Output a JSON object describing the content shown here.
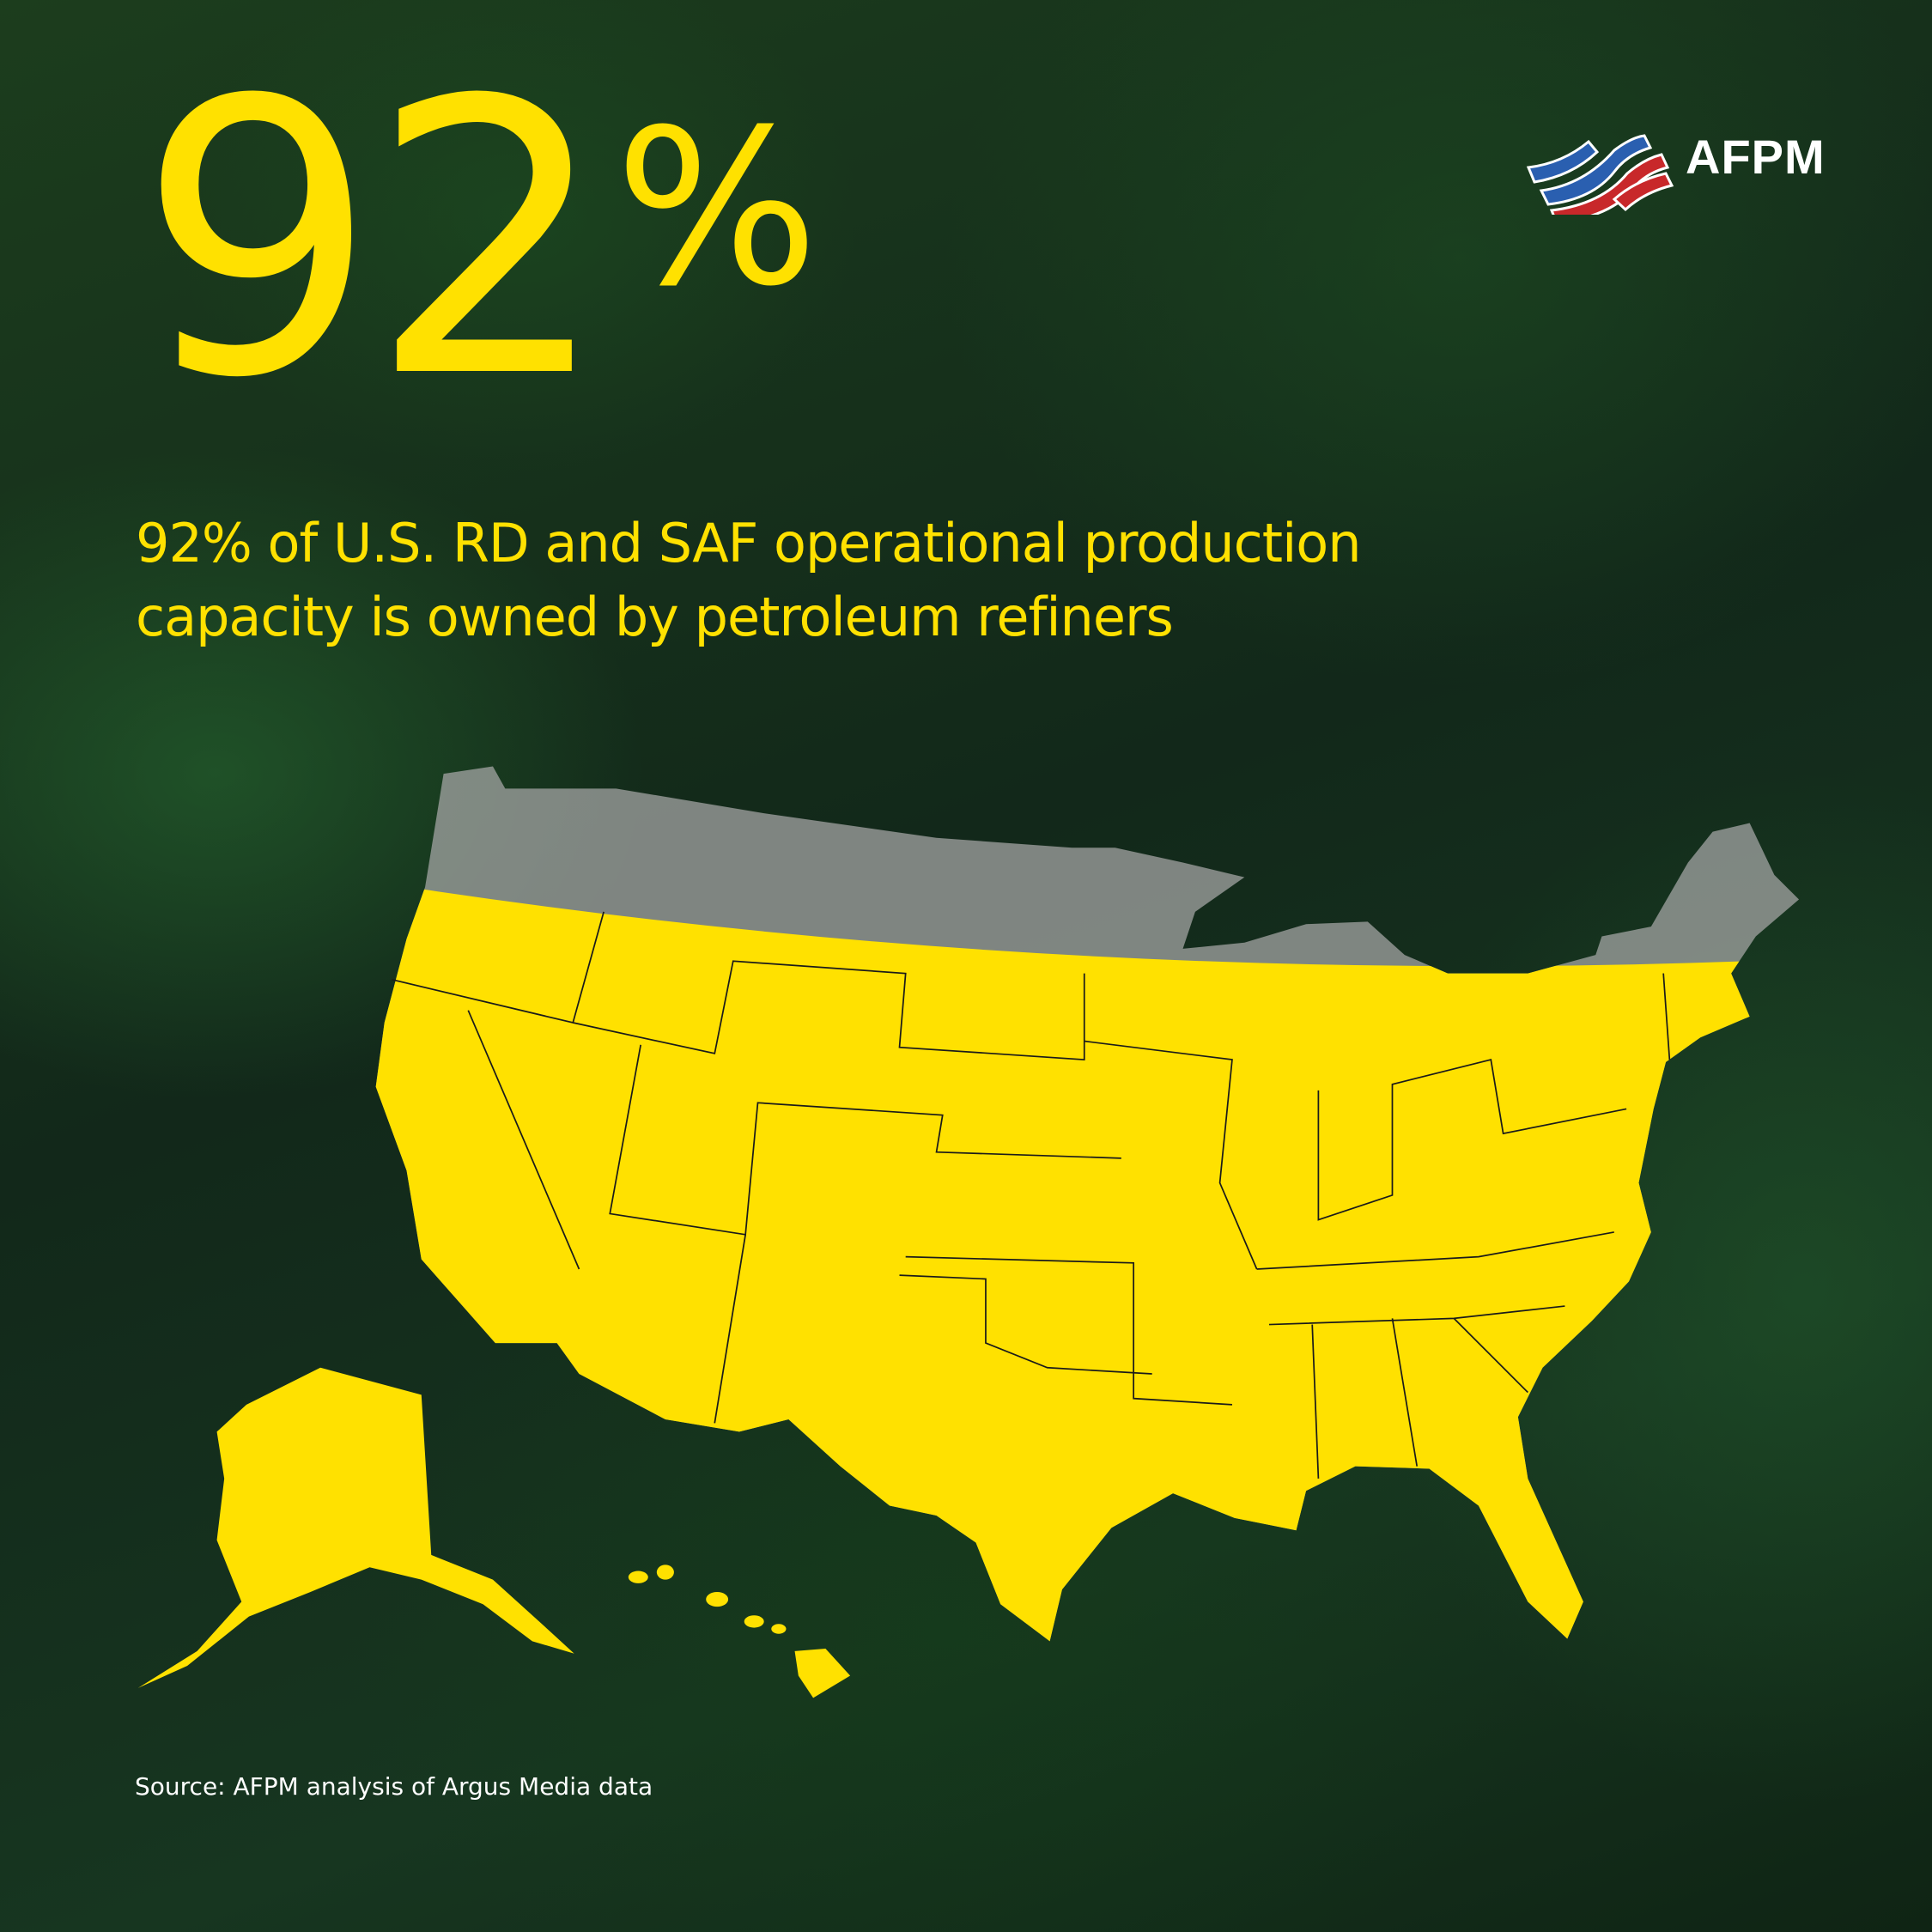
{
  "headline": {
    "value": "92",
    "unit": "%"
  },
  "subtitle": {
    "line1": "92% of U.S. RD and SAF operational production",
    "line2": "capacity is owned by petroleum refiners"
  },
  "source": "Source: AFPM analysis of Argus Media data",
  "logo": {
    "text": "AFPM"
  },
  "map": {
    "highlighted_share_percent": 92,
    "highlight_color": "#ffe100",
    "remainder_color": "#a9a9a9"
  },
  "colors": {
    "accent": "#ffe100",
    "background": "#14301a",
    "logo_blue": "#2a5fb0",
    "logo_red": "#c8282a"
  }
}
